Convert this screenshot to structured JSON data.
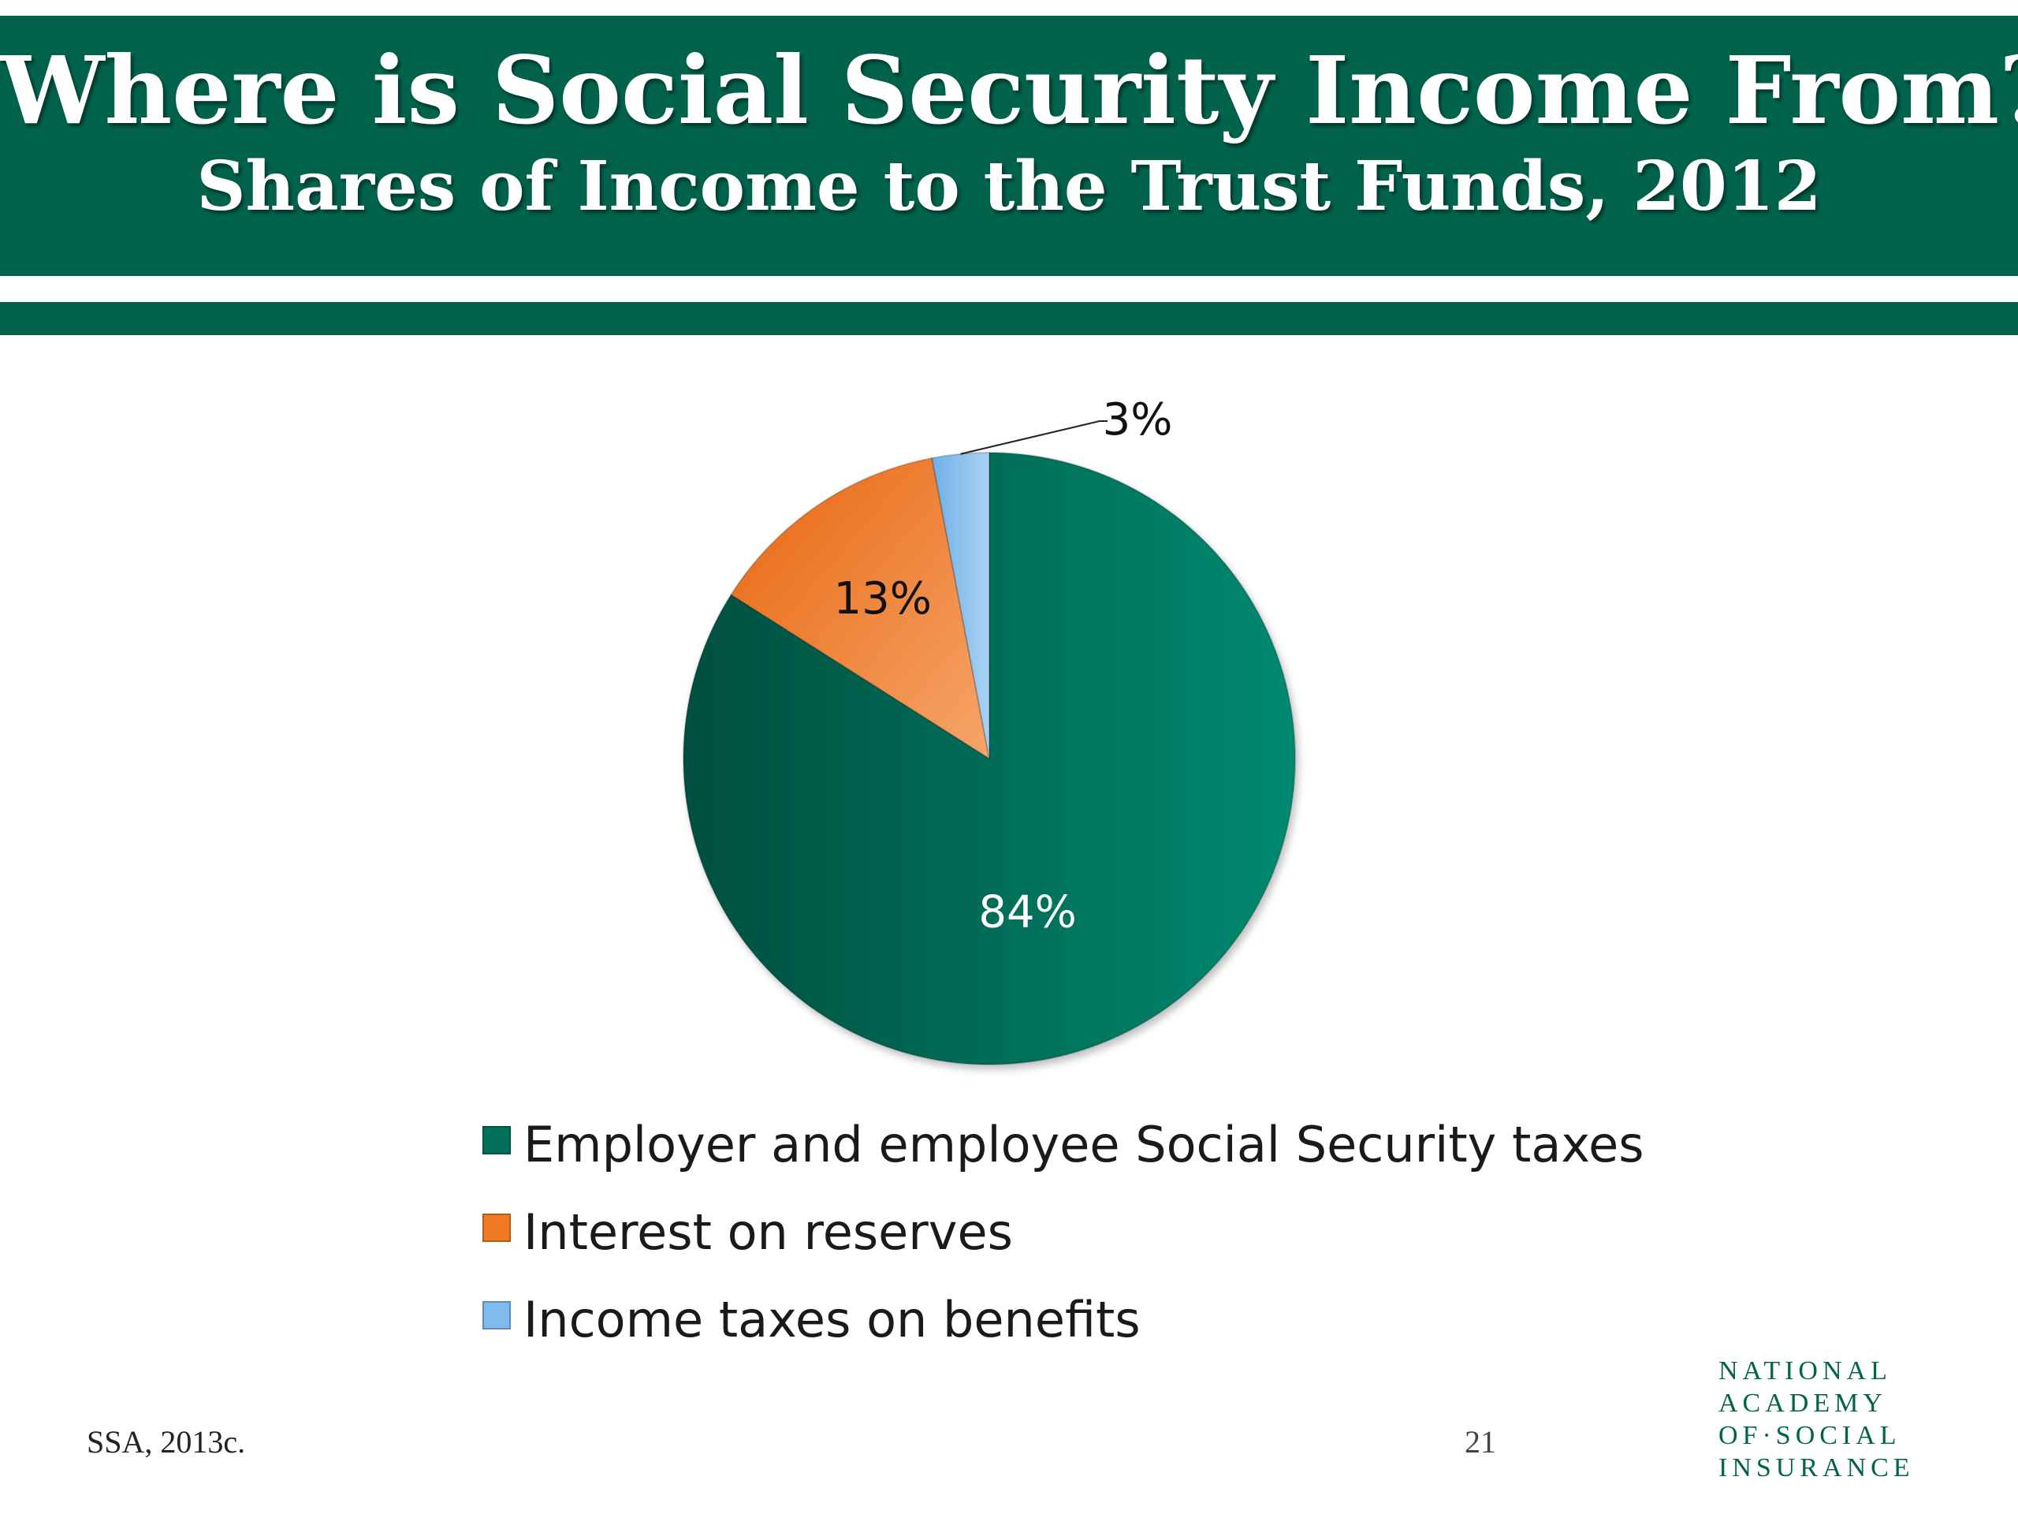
{
  "header": {
    "title": "Where is Social Security Income From?",
    "subtitle": "Shares of Income to the Trust Funds, 2012",
    "color": "#02634d"
  },
  "chart_data": {
    "type": "pie",
    "title": "",
    "categories": [
      "Employer and employee Social Security taxes",
      "Interest on reserves",
      "Income taxes on benefits"
    ],
    "values": [
      84,
      13,
      3
    ],
    "data_labels": [
      "84%",
      "13%",
      "3%"
    ],
    "colors": [
      "#02705a",
      "#f07a24",
      "#7fbbec"
    ],
    "start_angle": "12 o'clock",
    "direction": "clockwise",
    "legend_position": "bottom"
  },
  "footer": {
    "source": "SSA, 2013c.",
    "page_number": "21"
  },
  "logo": {
    "lines": [
      "NATIONAL",
      "ACADEMY",
      "OF·SOCIAL",
      "INSURANCE"
    ]
  }
}
